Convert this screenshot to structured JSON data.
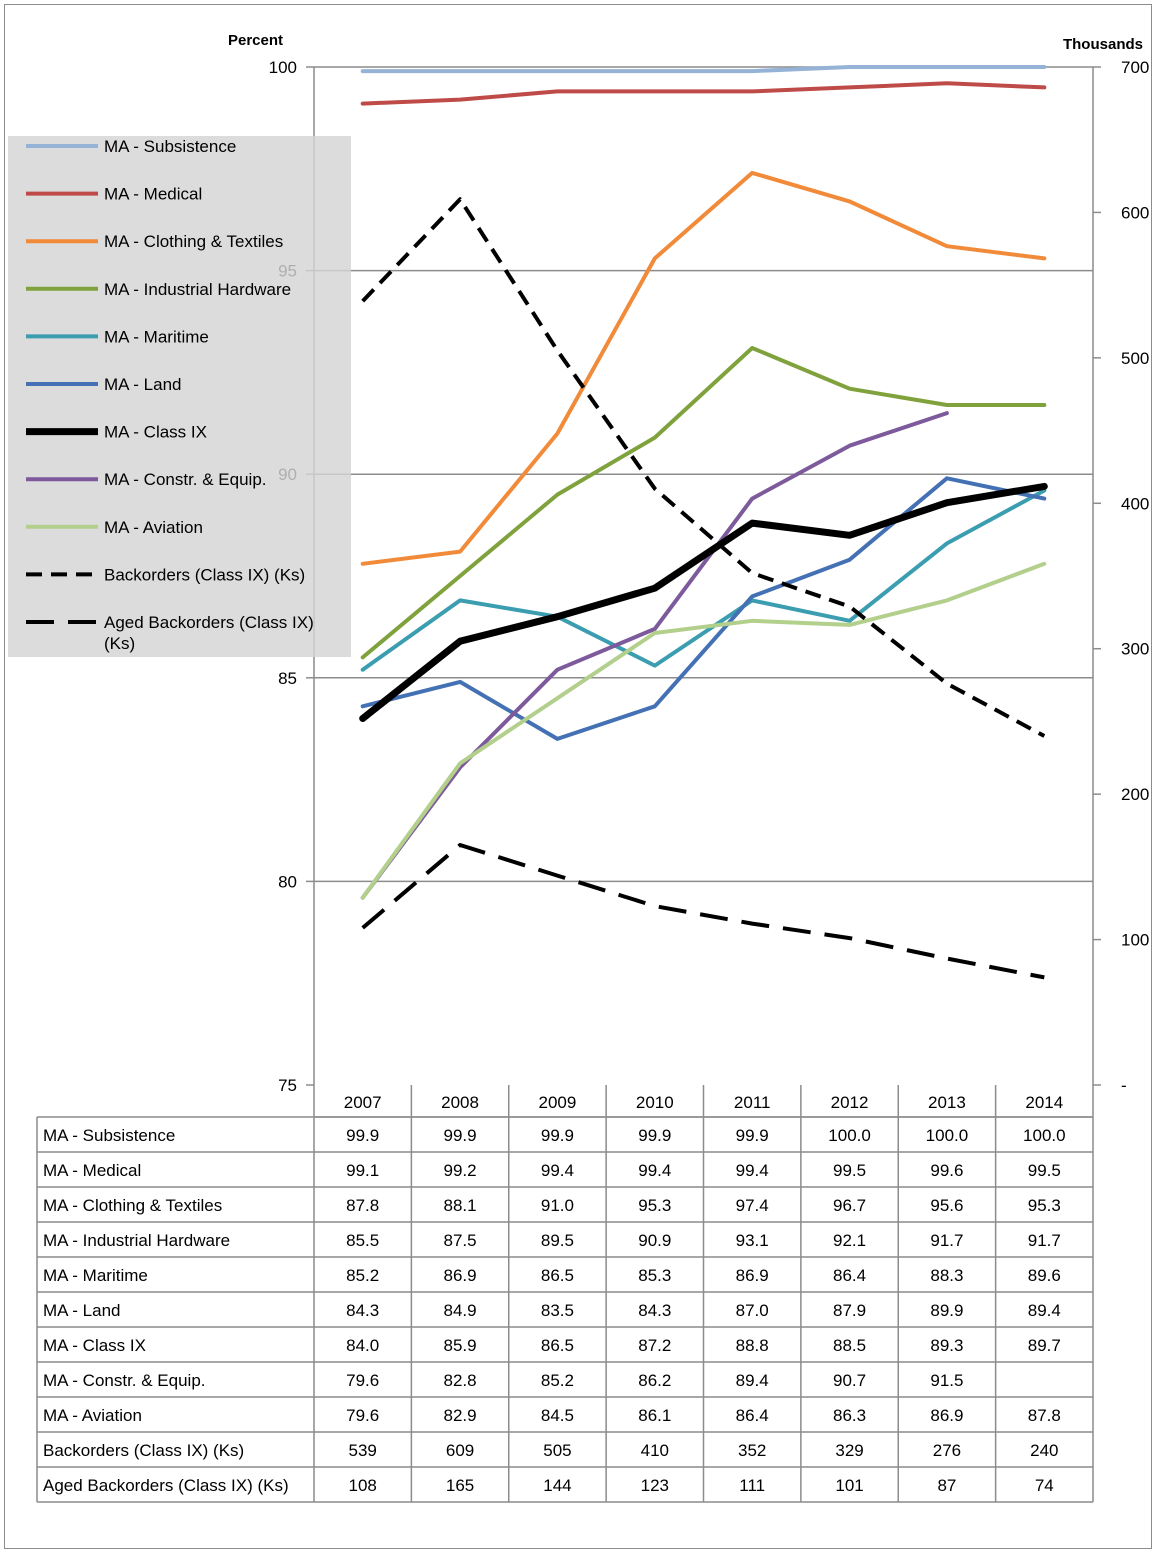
{
  "chart_data": {
    "type": "line",
    "title": "",
    "left_axis_title": "Percent",
    "right_axis_title": "Thousands",
    "categories": [
      "2007",
      "2008",
      "2009",
      "2010",
      "2011",
      "2012",
      "2013",
      "2014"
    ],
    "left_axis": {
      "min": 75,
      "max": 100,
      "ticks": [
        "75",
        "80",
        "85",
        "90",
        "95",
        "100"
      ]
    },
    "right_axis": {
      "min": 0,
      "max": 700,
      "ticks": [
        "-",
        "100",
        "200",
        "300",
        "400",
        "500",
        "600",
        "700"
      ]
    },
    "grid": true,
    "legend_position": "top-left",
    "series": [
      {
        "name": "MA - Subsistence",
        "axis": "left",
        "color": "#95b3d7",
        "dash": "solid",
        "width": 4,
        "values": [
          99.9,
          99.9,
          99.9,
          99.9,
          99.9,
          100.0,
          100.0,
          100.0
        ],
        "table_values": [
          "99.9",
          "99.9",
          "99.9",
          "99.9",
          "99.9",
          "100.0",
          "100.0",
          "100.0"
        ]
      },
      {
        "name": "MA - Medical",
        "axis": "left",
        "color": "#be4b48",
        "dash": "solid",
        "width": 4,
        "values": [
          99.1,
          99.2,
          99.4,
          99.4,
          99.4,
          99.5,
          99.6,
          99.5
        ],
        "table_values": [
          "99.1",
          "99.2",
          "99.4",
          "99.4",
          "99.4",
          "99.5",
          "99.6",
          "99.5"
        ]
      },
      {
        "name": "MA - Clothing & Textiles",
        "axis": "left",
        "color": "#f18a39",
        "dash": "solid",
        "width": 4,
        "values": [
          87.8,
          88.1,
          91.0,
          95.3,
          97.4,
          96.7,
          95.6,
          95.3
        ],
        "table_values": [
          "87.8",
          "88.1",
          "91.0",
          "95.3",
          "97.4",
          "96.7",
          "95.6",
          "95.3"
        ]
      },
      {
        "name": "MA - Industrial Hardware",
        "axis": "left",
        "color": "#7fa23d",
        "dash": "solid",
        "width": 4,
        "values": [
          85.5,
          87.5,
          89.5,
          90.9,
          93.1,
          92.1,
          91.7,
          91.7
        ],
        "table_values": [
          "85.5",
          "87.5",
          "89.5",
          "90.9",
          "93.1",
          "92.1",
          "91.7",
          "91.7"
        ]
      },
      {
        "name": "MA - Maritime",
        "axis": "left",
        "color": "#3b9db0",
        "dash": "solid",
        "width": 4,
        "values": [
          85.2,
          86.9,
          86.5,
          85.3,
          86.9,
          86.4,
          88.3,
          89.6
        ],
        "table_values": [
          "85.2",
          "86.9",
          "86.5",
          "85.3",
          "86.9",
          "86.4",
          "88.3",
          "89.6"
        ]
      },
      {
        "name": "MA - Land",
        "axis": "left",
        "color": "#4471b4",
        "dash": "solid",
        "width": 4,
        "values": [
          84.3,
          84.9,
          83.5,
          84.3,
          87.0,
          87.9,
          89.9,
          89.4
        ],
        "table_values": [
          "84.3",
          "84.9",
          "83.5",
          "84.3",
          "87.0",
          "87.9",
          "89.9",
          "89.4"
        ]
      },
      {
        "name": "MA - Class IX",
        "axis": "left",
        "color": "#000000",
        "dash": "solid",
        "width": 7,
        "values": [
          84.0,
          85.9,
          86.5,
          87.2,
          88.8,
          88.5,
          89.3,
          89.7
        ],
        "table_values": [
          "84.0",
          "85.9",
          "86.5",
          "87.2",
          "88.8",
          "88.5",
          "89.3",
          "89.7"
        ]
      },
      {
        "name": "MA - Constr. &  Equip.",
        "axis": "left",
        "color": "#7d5a9c",
        "dash": "solid",
        "width": 4,
        "values": [
          79.6,
          82.8,
          85.2,
          86.2,
          89.4,
          90.7,
          91.5,
          null
        ],
        "table_values": [
          "79.6",
          "82.8",
          "85.2",
          "86.2",
          "89.4",
          "90.7",
          "91.5",
          ""
        ]
      },
      {
        "name": "MA - Aviation",
        "axis": "left",
        "color": "#b3cf8c",
        "dash": "solid",
        "width": 4,
        "values": [
          79.6,
          82.9,
          84.5,
          86.1,
          86.4,
          86.3,
          86.9,
          87.8
        ],
        "table_values": [
          "79.6",
          "82.9",
          "84.5",
          "86.1",
          "86.4",
          "86.3",
          "86.9",
          "87.8"
        ]
      },
      {
        "name": "Backorders (Class IX) (Ks)",
        "axis": "right",
        "color": "#000000",
        "dash": "short",
        "width": 4,
        "values": [
          539,
          609,
          505,
          410,
          352,
          329,
          276,
          240
        ],
        "table_values": [
          "539",
          "609",
          "505",
          "410",
          "352",
          "329",
          "276",
          "240"
        ]
      },
      {
        "name": "Aged Backorders (Class IX) (Ks)",
        "axis": "right",
        "color": "#000000",
        "dash": "long",
        "width": 4,
        "legend_lines": [
          "Aged Backorders (Class IX)",
          "(Ks)"
        ],
        "values": [
          108,
          165,
          144,
          123,
          111,
          101,
          87,
          74
        ],
        "table_values": [
          "108",
          "165",
          "144",
          "123",
          "111",
          "101",
          "87",
          "74"
        ]
      }
    ]
  }
}
